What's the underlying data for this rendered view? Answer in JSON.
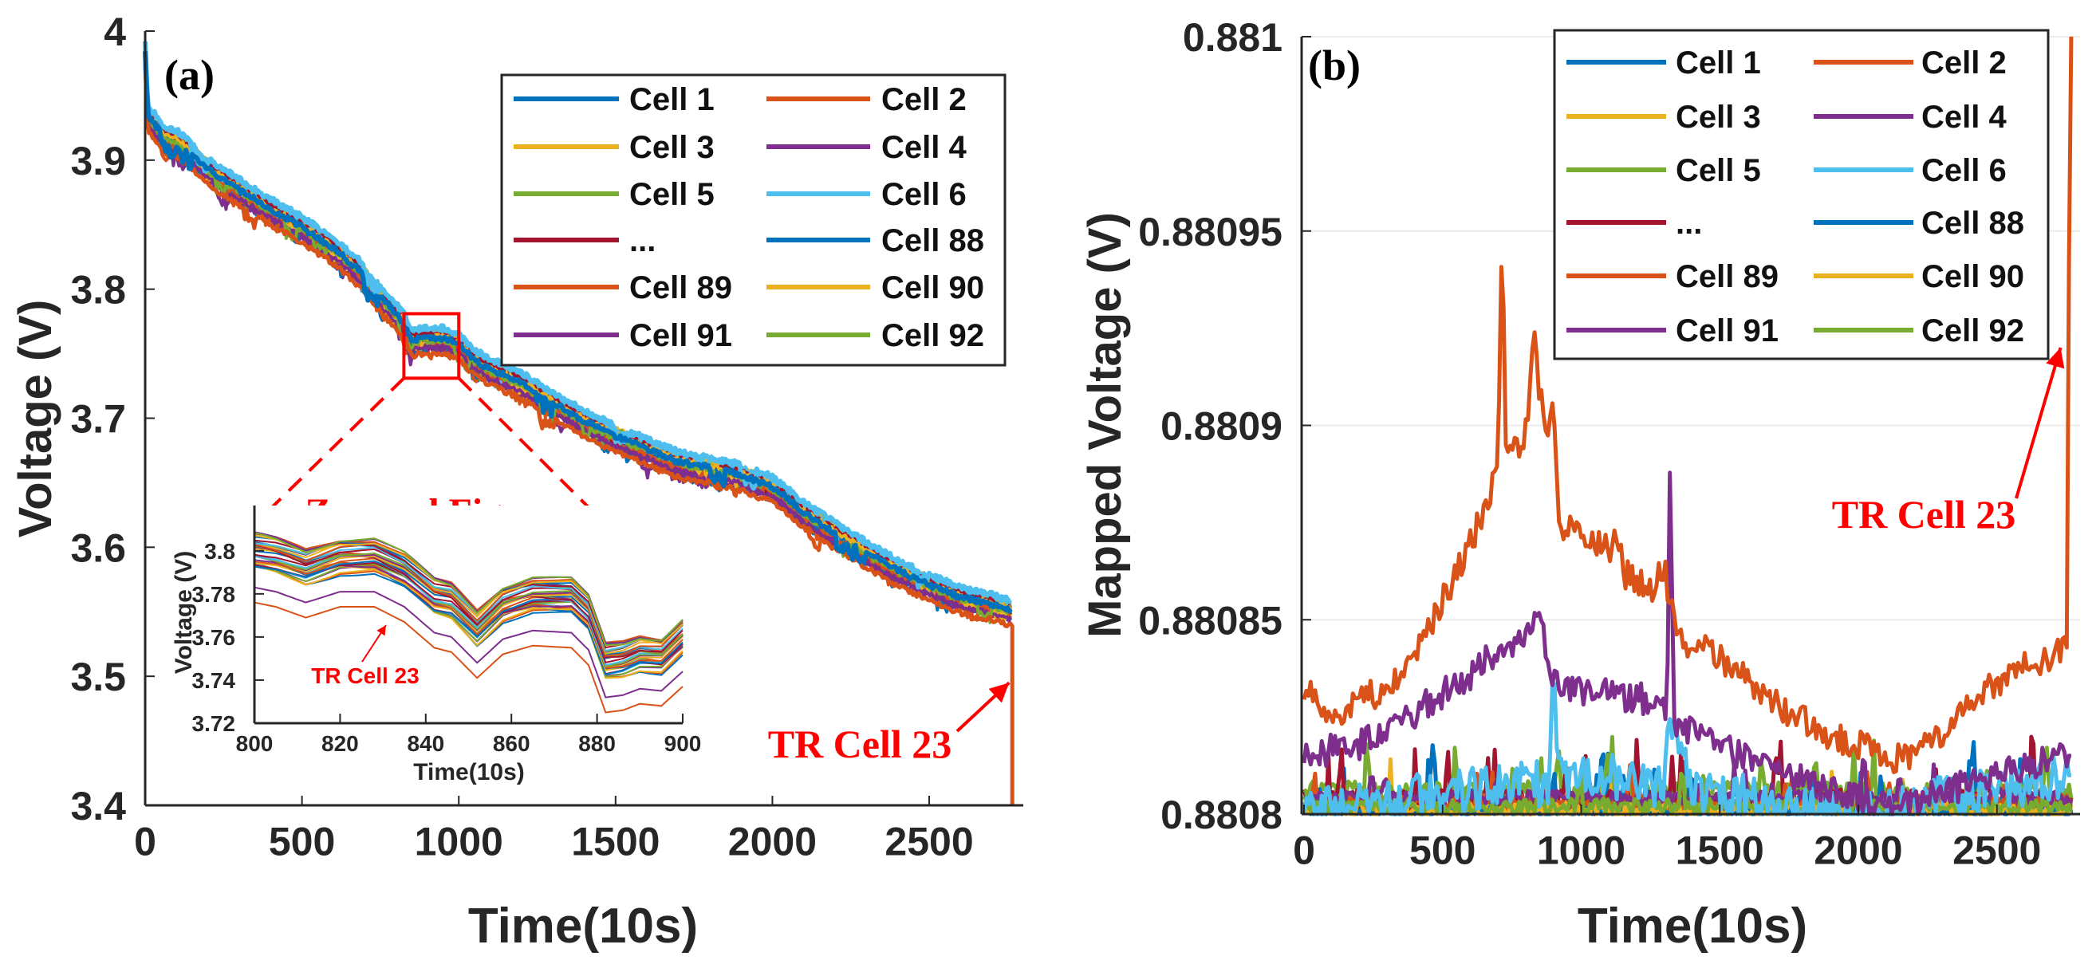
{
  "chart_data": [
    {
      "id": "a",
      "type": "line",
      "panel_label": "(a)",
      "xlabel": "Time(10s)",
      "ylabel": "Voltage (V)",
      "xlim": [
        0,
        2800
      ],
      "ylim": [
        3.4,
        4.0
      ],
      "grid": false,
      "xticks": [
        0,
        500,
        1000,
        1500,
        2000,
        2500
      ],
      "xtick_labels": [
        "0",
        "500",
        "1000",
        "1500",
        "2000",
        "2500"
      ],
      "yticks": [
        3.4,
        3.5,
        3.6,
        3.7,
        3.8,
        3.9,
        4.0
      ],
      "ytick_labels": [
        "3.4",
        "3.5",
        "3.6",
        "3.7",
        "3.8",
        "3.9",
        "4"
      ],
      "legend_placement": "top-right",
      "band_center": [
        [
          0,
          3.985
        ],
        [
          8,
          3.935
        ],
        [
          60,
          3.918
        ],
        [
          100,
          3.915
        ],
        [
          150,
          3.905
        ],
        [
          200,
          3.893
        ],
        [
          300,
          3.877
        ],
        [
          400,
          3.862
        ],
        [
          500,
          3.848
        ],
        [
          600,
          3.832
        ],
        [
          680,
          3.815
        ],
        [
          760,
          3.792
        ],
        [
          820,
          3.775
        ],
        [
          850,
          3.76
        ],
        [
          880,
          3.762
        ],
        [
          950,
          3.762
        ],
        [
          1000,
          3.757
        ],
        [
          1050,
          3.745
        ],
        [
          1100,
          3.738
        ],
        [
          1200,
          3.727
        ],
        [
          1300,
          3.712
        ],
        [
          1400,
          3.698
        ],
        [
          1500,
          3.686
        ],
        [
          1600,
          3.676
        ],
        [
          1700,
          3.666
        ],
        [
          1800,
          3.662
        ],
        [
          1900,
          3.656
        ],
        [
          2000,
          3.647
        ],
        [
          2100,
          3.627
        ],
        [
          2200,
          3.611
        ],
        [
          2300,
          3.596
        ],
        [
          2400,
          3.582
        ],
        [
          2500,
          3.571
        ],
        [
          2600,
          3.561
        ],
        [
          2700,
          3.556
        ],
        [
          2760,
          3.551
        ]
      ],
      "series": [
        {
          "name": "Cell 1",
          "color": "#0072BD",
          "offset": 0.0
        },
        {
          "name": "Cell 2",
          "color": "#D95319",
          "offset": -0.005
        },
        {
          "name": "Cell 3",
          "color": "#EDB120",
          "offset": 0.002
        },
        {
          "name": "Cell 4",
          "color": "#7E2F8E",
          "offset": -0.009
        },
        {
          "name": "Cell 5",
          "color": "#77AC30",
          "offset": 0.001
        },
        {
          "name": "Cell 6",
          "color": "#4DBEEE",
          "offset": 0.006
        },
        {
          "name": "...",
          "color": "#A2142F",
          "offset": 0.003
        },
        {
          "name": "Cell 88",
          "color": "#0072BD",
          "offset": -0.001
        },
        {
          "name": "Cell 89",
          "color": "#D95319",
          "offset": -0.004
        },
        {
          "name": "Cell 90",
          "color": "#EDB120",
          "offset": 0.0015
        },
        {
          "name": "Cell 91",
          "color": "#7E2F8E",
          "offset": -0.007
        },
        {
          "name": "Cell 92",
          "color": "#77AC30",
          "offset": -0.002
        }
      ],
      "tr_cell": {
        "name": "TR Cell 23",
        "color": "#D95319",
        "offset": -0.012,
        "drop_at": 2765,
        "drop_to": 3.4
      },
      "annotation": {
        "text": "TR Cell 23",
        "color": "#FF0000",
        "arrow_target": [
          2755,
          3.495
        ]
      },
      "zoom_box": {
        "x": [
          825,
          1000
        ],
        "y": [
          3.731,
          3.781
        ],
        "label": "Zoomed Figure",
        "color": "#FF0000"
      },
      "inset": {
        "xlabel": "Time(10s)",
        "ylabel": "Voltage (V)",
        "xlim": [
          800,
          900
        ],
        "ylim": [
          3.72,
          3.821
        ],
        "xticks": [
          800,
          820,
          840,
          860,
          880,
          900
        ],
        "xtick_labels": [
          "800",
          "820",
          "840",
          "860",
          "880",
          "900"
        ],
        "yticks": [
          3.72,
          3.74,
          3.76,
          3.78,
          3.8
        ],
        "ytick_labels": [
          "3.72",
          "3.74",
          "3.76",
          "3.78",
          "3.8"
        ],
        "band_center": [
          [
            800,
            3.799
          ],
          [
            805,
            3.797
          ],
          [
            812,
            3.792
          ],
          [
            820,
            3.797
          ],
          [
            828,
            3.797
          ],
          [
            835,
            3.79
          ],
          [
            842,
            3.778
          ],
          [
            846,
            3.776
          ],
          [
            852,
            3.764
          ],
          [
            858,
            3.775
          ],
          [
            865,
            3.779
          ],
          [
            874,
            3.778
          ],
          [
            878,
            3.77
          ],
          [
            882,
            3.748
          ],
          [
            886,
            3.749
          ],
          [
            890,
            3.752
          ],
          [
            895,
            3.751
          ],
          [
            900,
            3.76
          ]
        ],
        "band_spread": 0.012,
        "line_count": 40,
        "lower_lines": [
          {
            "name": "Cell 91",
            "color": "#7E2F8E",
            "offset": -0.016
          },
          {
            "name": "TR Cell 23",
            "color": "#D95319",
            "offset": -0.023
          }
        ],
        "annotation": {
          "text": "TR Cell 23",
          "color": "#FF0000"
        }
      }
    },
    {
      "id": "b",
      "type": "line",
      "panel_label": "(b)",
      "xlabel": "Time(10s)",
      "ylabel": "Mapped Voltage (V)",
      "xlim": [
        0,
        2800
      ],
      "ylim": [
        0.8808,
        0.881
      ],
      "grid": true,
      "xticks": [
        0,
        500,
        1000,
        1500,
        2000,
        2500
      ],
      "xtick_labels": [
        "0",
        "500",
        "1000",
        "1500",
        "2000",
        "2500"
      ],
      "yticks": [
        0.8808,
        0.88085,
        0.8809,
        0.88095,
        0.881
      ],
      "ytick_labels": [
        "0.8808",
        "0.88085",
        "0.8809",
        "0.88095",
        "0.881"
      ],
      "legend_placement": "top-right",
      "series": [
        {
          "name": "Cell 1",
          "color": "#0072BD",
          "base": 0.880802,
          "noise": 6e-06
        },
        {
          "name": "Cell 2",
          "color": "#D95319",
          "points": [
            [
              0,
              0.880832
            ],
            [
              100,
              0.880826
            ],
            [
              200,
              0.880829
            ],
            [
              300,
              0.880833
            ],
            [
              400,
              0.88084
            ],
            [
              500,
              0.880855
            ],
            [
              600,
              0.88087
            ],
            [
              700,
              0.880888
            ],
            [
              715,
              0.880953
            ],
            [
              730,
              0.88089
            ],
            [
              800,
              0.880898
            ],
            [
              830,
              0.880923
            ],
            [
              870,
              0.880896
            ],
            [
              900,
              0.880905
            ],
            [
              920,
              0.880875
            ],
            [
              1000,
              0.880873
            ],
            [
              1100,
              0.880868
            ],
            [
              1130,
              0.880873
            ],
            [
              1160,
              0.880862
            ],
            [
              1250,
              0.880858
            ],
            [
              1300,
              0.880864
            ],
            [
              1340,
              0.880846
            ],
            [
              1500,
              0.88084
            ],
            [
              1600,
              0.880834
            ],
            [
              1700,
              0.880828
            ],
            [
              1800,
              0.880824
            ],
            [
              1900,
              0.88082
            ],
            [
              2000,
              0.880818
            ],
            [
              2100,
              0.880814
            ],
            [
              2200,
              0.880815
            ],
            [
              2300,
              0.88082
            ],
            [
              2400,
              0.880828
            ],
            [
              2500,
              0.880834
            ],
            [
              2600,
              0.880838
            ],
            [
              2700,
              0.88084
            ],
            [
              2755,
              0.880845
            ],
            [
              2763,
              0.881
            ]
          ],
          "noise": 4e-06
        },
        {
          "name": "Cell 3",
          "color": "#EDB120",
          "base": 0.880801,
          "noise": 5e-06
        },
        {
          "name": "Cell 4",
          "color": "#7E2F8E",
          "points": [
            [
              0,
              0.880815
            ],
            [
              200,
              0.880818
            ],
            [
              400,
              0.880826
            ],
            [
              600,
              0.880836
            ],
            [
              700,
              0.880842
            ],
            [
              800,
              0.880845
            ],
            [
              850,
              0.88085
            ],
            [
              900,
              0.880835
            ],
            [
              1000,
              0.880832
            ],
            [
              1200,
              0.88083
            ],
            [
              1310,
              0.880828
            ],
            [
              1320,
              0.880889
            ],
            [
              1335,
              0.880823
            ],
            [
              1500,
              0.880818
            ],
            [
              1700,
              0.880811
            ],
            [
              1900,
              0.880806
            ],
            [
              2000,
              0.880805
            ],
            [
              2100,
              0.8808
            ],
            [
              2400,
              0.880808
            ],
            [
              2760,
              0.880815
            ]
          ],
          "noise": 4e-06
        },
        {
          "name": "Cell 5",
          "color": "#77AC30",
          "base": 0.880806,
          "noise": 5e-06
        },
        {
          "name": "Cell 6",
          "color": "#4DBEEE",
          "points": [
            [
              0,
              0.880802
            ],
            [
              600,
              0.880806
            ],
            [
              880,
              0.880808
            ],
            [
              900,
              0.880834
            ],
            [
              920,
              0.88081
            ],
            [
              1100,
              0.88081
            ],
            [
              1300,
              0.880806
            ],
            [
              1320,
              0.880825
            ],
            [
              1400,
              0.880806
            ],
            [
              1600,
              0.880805
            ],
            [
              1700,
              0.880802
            ],
            [
              2000,
              0.8808
            ],
            [
              2400,
              0.880805
            ],
            [
              2760,
              0.88081
            ]
          ],
          "noise": 6e-06
        },
        {
          "name": "...",
          "color": "#A2142F",
          "base": 0.880803,
          "noise": 7e-06
        },
        {
          "name": "Cell 88",
          "color": "#0072BD",
          "base": 0.8808,
          "noise": 4e-06
        },
        {
          "name": "Cell 89",
          "color": "#D95319",
          "base": 0.880803,
          "noise": 4e-06
        },
        {
          "name": "Cell 90",
          "color": "#EDB120",
          "base": 0.880801,
          "noise": 4e-06
        },
        {
          "name": "Cell 91",
          "color": "#7E2F8E",
          "base": 0.880804,
          "noise": 4e-06
        },
        {
          "name": "Cell 92",
          "color": "#77AC30",
          "base": 0.880802,
          "noise": 4e-06
        }
      ],
      "annotation": {
        "text": "TR Cell 23",
        "color": "#FF0000",
        "arrow_target": [
          2770,
          0.88092
        ]
      }
    }
  ]
}
